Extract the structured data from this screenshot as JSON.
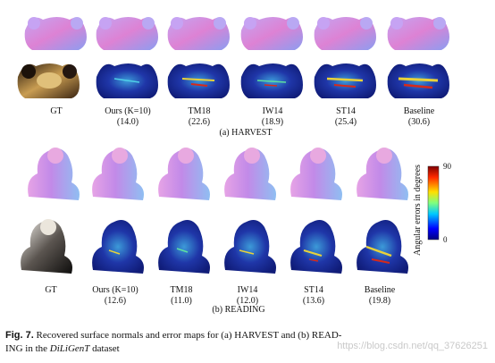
{
  "harvest": {
    "columns": [
      {
        "name": "GT",
        "err": ""
      },
      {
        "name": "Ours (K=10)",
        "err": "(14.0)"
      },
      {
        "name": "TM18",
        "err": "(22.6)"
      },
      {
        "name": "IW14",
        "err": "(18.9)"
      },
      {
        "name": "ST14",
        "err": "(25.4)"
      },
      {
        "name": "Baseline",
        "err": "(30.6)"
      }
    ],
    "subcaption": "(a) HARVEST"
  },
  "reading": {
    "columns": [
      {
        "name": "GT",
        "err": ""
      },
      {
        "name": "Ours (K=10)",
        "err": "(12.6)"
      },
      {
        "name": "TM18",
        "err": "(11.0)"
      },
      {
        "name": "IW14",
        "err": "(12.0)"
      },
      {
        "name": "ST14",
        "err": "(13.6)"
      },
      {
        "name": "Baseline",
        "err": "(19.8)"
      }
    ],
    "subcaption": "(b) READING"
  },
  "colorbar": {
    "title": "Angular errors in degrees",
    "max": "90",
    "min": "0"
  },
  "caption": {
    "fig": "Fig. 7.",
    "text_1": "Recovered surface normals and error maps for (a) HARVEST and (b) READ-",
    "text_2": "ING in the",
    "dataset_name": "DiLiGenT",
    "text_3": "dataset"
  },
  "watermark": "https://blog.csdn.net/qq_37626251",
  "colors": {
    "normal_pink": "#d87fd0",
    "normal_blue": "#8fa7ef",
    "error_blue": "#1a2b9c",
    "error_red": "#d62a1a"
  }
}
